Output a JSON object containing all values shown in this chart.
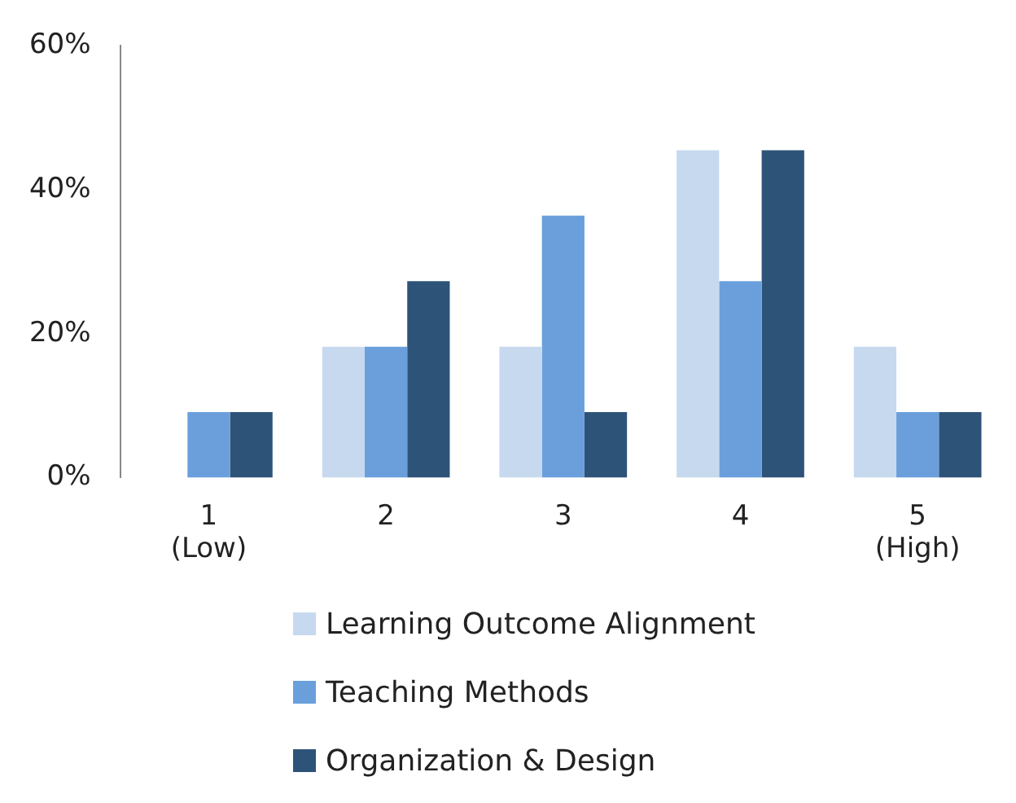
{
  "chart_data": {
    "type": "bar",
    "categories": [
      "1\n(Low)",
      "2",
      "3",
      "4",
      "5\n(High)"
    ],
    "series": [
      {
        "name": "Learning Outcome Alignment",
        "color": "#c6d9ef",
        "values": [
          0,
          18.2,
          18.2,
          45.5,
          18.2
        ]
      },
      {
        "name": "Teaching Methods",
        "color": "#6a9fdc",
        "values": [
          9.1,
          18.2,
          36.4,
          27.3,
          9.1
        ]
      },
      {
        "name": "Organization & Design",
        "color": "#2e5378",
        "values": [
          9.1,
          27.3,
          9.1,
          45.5,
          9.1
        ]
      }
    ],
    "ylim": [
      0,
      60
    ],
    "yticks": [
      {
        "value": 0,
        "label": "0%"
      },
      {
        "value": 20,
        "label": "20%"
      },
      {
        "value": 40,
        "label": "40%"
      },
      {
        "value": 60,
        "label": "60%"
      }
    ],
    "grid": false,
    "legend": "bottom"
  }
}
